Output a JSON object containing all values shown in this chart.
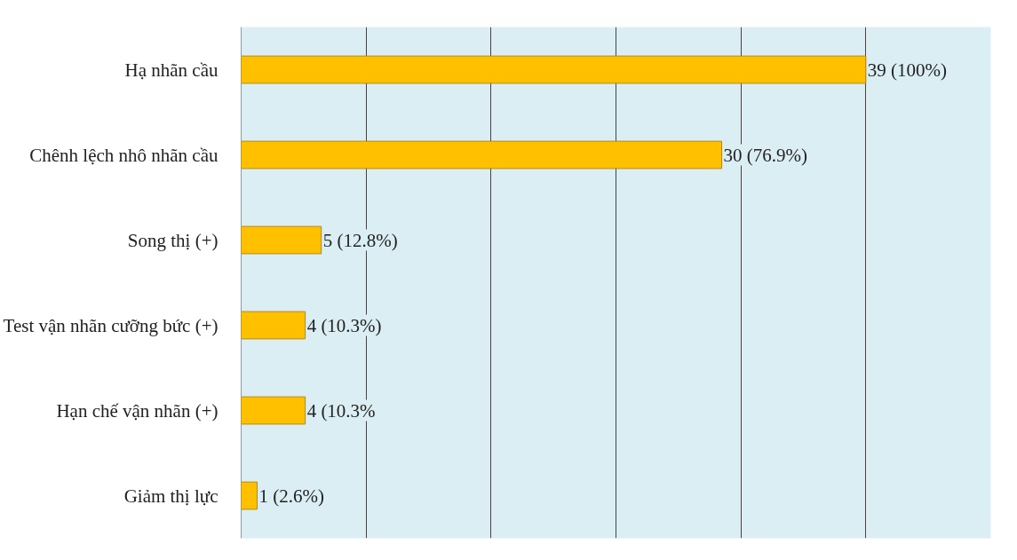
{
  "chart_data": {
    "type": "bar",
    "orientation": "horizontal",
    "categories": [
      "Hạ nhãn cầu",
      "Chênh lệch nhô nhãn cầu",
      "Song thị (+)",
      "Test vận nhãn cưỡng bức (+)",
      "Hạn chế vận nhãn (+)",
      "Giảm thị lực"
    ],
    "values": [
      39,
      30,
      5,
      4,
      4,
      1
    ],
    "value_labels": [
      "39 (100%)",
      "30 (76.9%)",
      "5 (12.8%)",
      "4 (10.3%)",
      "4 (10.3%",
      "1 (2.6%)"
    ],
    "color": "#ffc000",
    "xlim": [
      0,
      46.8
    ],
    "xticks": [
      {
        "value": 7.8,
        "label": null
      },
      {
        "value": 15.6,
        "label": null
      },
      {
        "value": 23.4,
        "label": null
      },
      {
        "value": 31.2,
        "label": null
      },
      {
        "value": 39,
        "label": null
      },
      {
        "value": 46.8,
        "label": null
      }
    ],
    "grid": "x",
    "tick_labels": "y"
  }
}
